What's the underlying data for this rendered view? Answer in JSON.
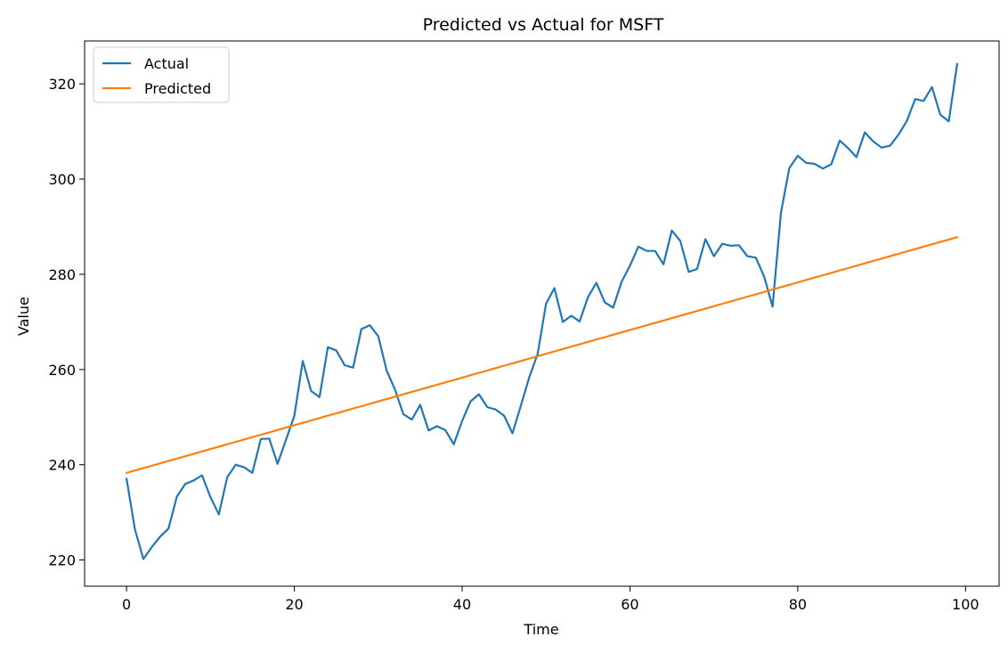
{
  "chart_data": {
    "type": "line",
    "title": "Predicted vs Actual for MSFT",
    "xlabel": "Time",
    "ylabel": "Value",
    "xlim": [
      -5,
      104
    ],
    "ylim": [
      214.5,
      329
    ],
    "xticks": [
      0,
      20,
      40,
      60,
      80,
      100
    ],
    "yticks": [
      220,
      240,
      260,
      280,
      300,
      320
    ],
    "legend": "top-left",
    "grid": false,
    "series": [
      {
        "name": "Actual",
        "color": "#1f77b4",
        "x": [
          0,
          1,
          2,
          3,
          4,
          5,
          6,
          7,
          8,
          9,
          10,
          11,
          12,
          13,
          14,
          15,
          16,
          17,
          18,
          19,
          20,
          21,
          22,
          23,
          24,
          25,
          26,
          27,
          28,
          29,
          30,
          31,
          32,
          33,
          34,
          35,
          36,
          37,
          38,
          39,
          40,
          41,
          42,
          43,
          44,
          45,
          46,
          47,
          48,
          49,
          50,
          51,
          52,
          53,
          54,
          55,
          56,
          57,
          58,
          59,
          60,
          61,
          62,
          63,
          64,
          65,
          66,
          67,
          68,
          69,
          70,
          71,
          72,
          73,
          74,
          75,
          76,
          77,
          78,
          79,
          80,
          81,
          82,
          83,
          84,
          85,
          86,
          87,
          88,
          89,
          90,
          91,
          92,
          93,
          94,
          95,
          96,
          97,
          98,
          99
        ],
        "values": [
          237.1,
          226.5,
          220.2,
          222.7,
          224.9,
          226.6,
          233.3,
          236.0,
          236.7,
          237.8,
          233.2,
          229.6,
          237.4,
          240.0,
          239.5,
          238.3,
          245.4,
          245.5,
          240.2,
          245.2,
          250.3,
          261.8,
          255.5,
          254.2,
          264.7,
          264.0,
          260.9,
          260.4,
          268.5,
          269.3,
          267.0,
          259.8,
          255.8,
          250.6,
          249.5,
          252.6,
          247.2,
          248.1,
          247.3,
          244.3,
          249.2,
          253.3,
          254.8,
          252.1,
          251.6,
          250.3,
          246.6,
          252.4,
          258.4,
          263.3,
          273.8,
          277.1,
          270.0,
          271.3,
          270.1,
          275.2,
          278.2,
          274.1,
          273.0,
          278.4,
          281.8,
          285.8,
          284.9,
          284.9,
          282.1,
          289.2,
          287.0,
          280.5,
          281.1,
          287.4,
          283.8,
          286.4,
          286.0,
          286.1,
          283.8,
          283.5,
          279.5,
          273.2,
          292.9,
          302.3,
          304.9,
          303.4,
          303.2,
          302.2,
          303.1,
          308.1,
          306.5,
          304.6,
          309.8,
          307.9,
          306.6,
          307.0,
          309.3,
          312.2,
          316.8,
          316.4,
          319.3,
          313.5,
          312.1,
          324.2
        ]
      },
      {
        "name": "Predicted",
        "color": "#ff7f0e",
        "x": [
          0,
          1,
          2,
          3,
          4,
          5,
          6,
          7,
          8,
          9,
          10,
          11,
          12,
          13,
          14,
          15,
          16,
          17,
          18,
          19,
          20,
          21,
          22,
          23,
          24,
          25,
          26,
          27,
          28,
          29,
          30,
          31,
          32,
          33,
          34,
          35,
          36,
          37,
          38,
          39,
          40,
          41,
          42,
          43,
          44,
          45,
          46,
          47,
          48,
          49,
          50,
          51,
          52,
          53,
          54,
          55,
          56,
          57,
          58,
          59,
          60,
          61,
          62,
          63,
          64,
          65,
          66,
          67,
          68,
          69,
          70,
          71,
          72,
          73,
          74,
          75,
          76,
          77,
          78,
          79,
          80,
          81,
          82,
          83,
          84,
          85,
          86,
          87,
          88,
          89,
          90,
          91,
          92,
          93,
          94,
          95,
          96,
          97,
          98,
          99
        ],
        "values": [
          238.3,
          238.8,
          239.3,
          239.8,
          240.3,
          240.8,
          241.3,
          241.8,
          242.3,
          242.8,
          243.3,
          243.8,
          244.3,
          244.8,
          245.3,
          245.8,
          246.3,
          246.8,
          247.3,
          247.8,
          248.3,
          248.8,
          249.3,
          249.8,
          250.3,
          250.8,
          251.3,
          251.8,
          252.3,
          252.8,
          253.3,
          253.8,
          254.3,
          254.8,
          255.3,
          255.8,
          256.3,
          256.8,
          257.3,
          257.8,
          258.3,
          258.8,
          259.3,
          259.8,
          260.3,
          260.8,
          261.3,
          261.8,
          262.3,
          262.8,
          263.3,
          263.8,
          264.3,
          264.8,
          265.3,
          265.8,
          266.3,
          266.8,
          267.3,
          267.8,
          268.3,
          268.8,
          269.3,
          269.8,
          270.3,
          270.8,
          271.3,
          271.8,
          272.3,
          272.8,
          273.3,
          273.8,
          274.3,
          274.8,
          275.3,
          275.8,
          276.3,
          276.8,
          277.3,
          277.8,
          278.3,
          278.8,
          279.3,
          279.8,
          280.3,
          280.8,
          281.3,
          281.8,
          282.3,
          282.8,
          283.3,
          283.8,
          284.3,
          284.8,
          285.3,
          285.8,
          286.3,
          286.8,
          287.3,
          287.8
        ]
      }
    ]
  }
}
